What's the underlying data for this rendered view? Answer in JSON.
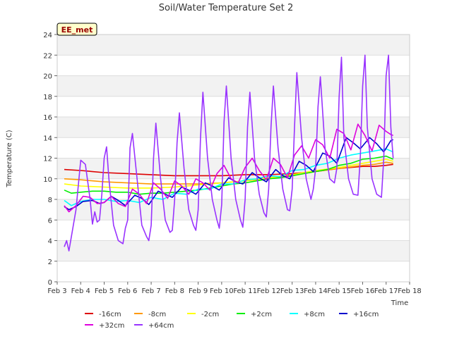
{
  "chart_data": {
    "type": "line",
    "title": "Soil/Water Temperature Set 2",
    "xlabel": "Time",
    "ylabel": "Temperature (C)",
    "annotation": "EE_met",
    "x_ticks": [
      "Feb 3",
      "Feb 4",
      "Feb 5",
      "Feb 6",
      "Feb 7",
      "Feb 8",
      "Feb 9",
      "Feb 10",
      "Feb 11",
      "Feb 12",
      "Feb 13",
      "Feb 14",
      "Feb 15",
      "Feb 16",
      "Feb 17",
      "Feb 18"
    ],
    "x_range": [
      3,
      18
    ],
    "y_range": [
      0,
      24
    ],
    "y_ticks": [
      0,
      2,
      4,
      6,
      8,
      10,
      12,
      14,
      16,
      18,
      20,
      22,
      24
    ],
    "grid": "horizontal bands",
    "legend_position": "bottom",
    "series": [
      {
        "name": "-16cm",
        "color": "#dd0000",
        "x": [
          3.3,
          4,
          5,
          6,
          7,
          8,
          9,
          10,
          11,
          12,
          13,
          14,
          15,
          16,
          16.5,
          17,
          17.3
        ],
        "y": [
          10.9,
          10.8,
          10.6,
          10.5,
          10.4,
          10.3,
          10.3,
          10.3,
          10.4,
          10.4,
          10.5,
          10.7,
          11.0,
          11.2,
          11.2,
          11.3,
          11.4
        ]
      },
      {
        "name": "-8cm",
        "color": "#ff9900",
        "x": [
          3.3,
          4,
          5,
          6,
          7,
          8,
          9,
          10,
          11,
          12,
          13,
          14,
          15,
          16,
          16.5,
          17,
          17.3
        ],
        "y": [
          10.0,
          9.9,
          9.7,
          9.6,
          9.5,
          9.5,
          9.5,
          9.6,
          9.8,
          10.0,
          10.3,
          10.7,
          11.0,
          11.3,
          11.4,
          11.6,
          11.5
        ]
      },
      {
        "name": "-2cm",
        "color": "#ffff00",
        "x": [
          3.3,
          4,
          5,
          6,
          7,
          8,
          9,
          10,
          11,
          12,
          13,
          14,
          15,
          16,
          16.5,
          17,
          17.3
        ],
        "y": [
          9.5,
          9.3,
          9.2,
          9.1,
          9.1,
          9.2,
          9.4,
          9.6,
          9.8,
          10.1,
          10.4,
          10.8,
          11.1,
          11.5,
          11.7,
          11.9,
          11.7
        ]
      },
      {
        "name": "+2cm",
        "color": "#00ee00",
        "x": [
          3.3,
          3.6,
          4,
          4.5,
          5,
          5.5,
          6,
          6.5,
          7,
          7.5,
          8,
          8.5,
          9,
          9.5,
          10,
          10.5,
          11,
          11.5,
          12,
          12.5,
          13,
          13.5,
          14,
          14.5,
          15,
          15.5,
          16,
          16.5,
          17,
          17.3
        ],
        "y": [
          8.9,
          8.6,
          8.7,
          8.8,
          8.8,
          8.7,
          8.7,
          8.5,
          8.6,
          8.6,
          8.7,
          8.8,
          8.9,
          9.1,
          9.3,
          9.5,
          9.6,
          9.8,
          10.0,
          10.1,
          10.3,
          10.5,
          10.7,
          10.9,
          11.3,
          11.5,
          11.9,
          12.0,
          12.2,
          11.9
        ]
      },
      {
        "name": "+8cm",
        "color": "#00ffff",
        "x": [
          3.3,
          3.6,
          4,
          4.5,
          5,
          5.5,
          6,
          6.5,
          7,
          7.5,
          8,
          8.5,
          9,
          9.5,
          10,
          10.5,
          11,
          11.5,
          12,
          12.5,
          13,
          13.5,
          14,
          14.5,
          15,
          15.5,
          16,
          16.5,
          17,
          17.3
        ],
        "y": [
          7.9,
          7.4,
          7.8,
          8.0,
          8.0,
          7.8,
          7.9,
          7.7,
          8.2,
          8.0,
          8.6,
          8.5,
          9.0,
          9.0,
          9.5,
          9.5,
          9.9,
          10.0,
          10.3,
          10.2,
          10.8,
          10.9,
          11.3,
          11.5,
          12.0,
          12.3,
          12.5,
          12.7,
          12.9,
          12.6
        ]
      },
      {
        "name": "+16cm",
        "color": "#0000cc",
        "x": [
          3.3,
          3.5,
          3.8,
          4.1,
          4.5,
          4.8,
          5,
          5.3,
          5.6,
          5.9,
          6.3,
          6.6,
          6.9,
          7.3,
          7.6,
          7.9,
          8.3,
          8.6,
          8.9,
          9.3,
          9.6,
          9.9,
          10.3,
          10.6,
          10.9,
          11.3,
          11.6,
          11.9,
          12.3,
          12.6,
          12.9,
          13.3,
          13.6,
          13.9,
          14.3,
          14.6,
          14.9,
          15.3,
          15.6,
          15.9,
          16.3,
          16.6,
          16.9,
          17.2,
          17.3
        ],
        "y": [
          7.3,
          7.0,
          7.3,
          7.8,
          7.9,
          7.6,
          7.7,
          8.3,
          7.9,
          7.4,
          8.4,
          8.1,
          7.5,
          8.8,
          8.5,
          8.2,
          9.2,
          8.9,
          8.5,
          9.6,
          9.3,
          8.9,
          10.1,
          9.7,
          9.5,
          10.6,
          10.1,
          9.7,
          10.9,
          10.3,
          10.0,
          11.7,
          11.3,
          10.7,
          12.5,
          12.2,
          11.5,
          14.0,
          13.5,
          12.9,
          14.0,
          13.4,
          12.6,
          13.7,
          13.8
        ]
      },
      {
        "name": "+32cm",
        "color": "#dd00dd",
        "x": [
          3.3,
          3.5,
          3.8,
          4.1,
          4.4,
          4.7,
          5,
          5.3,
          5.6,
          5.9,
          6.2,
          6.5,
          6.8,
          7.1,
          7.4,
          7.7,
          8,
          8.3,
          8.6,
          8.9,
          9.2,
          9.5,
          9.8,
          10.1,
          10.4,
          10.7,
          11,
          11.3,
          11.6,
          11.9,
          12.2,
          12.5,
          12.8,
          13.1,
          13.4,
          13.7,
          14,
          14.3,
          14.6,
          14.9,
          15.2,
          15.5,
          15.8,
          16.1,
          16.4,
          16.7,
          17,
          17.2,
          17.3
        ],
        "y": [
          7.4,
          6.8,
          7.4,
          8.3,
          8.2,
          7.6,
          7.7,
          8.3,
          7.6,
          7.3,
          9.0,
          8.5,
          7.6,
          9.6,
          9.0,
          8.1,
          9.8,
          9.3,
          8.5,
          10.0,
          9.6,
          8.9,
          10.5,
          11.3,
          10.0,
          9.6,
          11.1,
          12.0,
          10.8,
          9.9,
          12.0,
          11.4,
          10.1,
          12.3,
          13.2,
          12.0,
          13.8,
          13.3,
          12.0,
          14.8,
          14.4,
          12.8,
          15.3,
          14.2,
          12.7,
          15.2,
          14.6,
          14.3,
          14.2
        ]
      },
      {
        "name": "+64cm",
        "color": "#9933ff",
        "x": [
          3.3,
          3.4,
          3.5,
          3.8,
          4.0,
          4.2,
          4.4,
          4.5,
          4.6,
          4.7,
          4.8,
          4.9,
          5.0,
          5.1,
          5.2,
          5.4,
          5.6,
          5.8,
          5.9,
          6.0,
          6.1,
          6.2,
          6.4,
          6.6,
          6.8,
          6.9,
          7.0,
          7.1,
          7.2,
          7.4,
          7.6,
          7.8,
          7.9,
          8.0,
          8.1,
          8.2,
          8.4,
          8.6,
          8.8,
          8.9,
          9.0,
          9.1,
          9.2,
          9.4,
          9.6,
          9.8,
          9.9,
          10.0,
          10.1,
          10.2,
          10.4,
          10.6,
          10.8,
          10.9,
          11.0,
          11.1,
          11.2,
          11.4,
          11.6,
          11.8,
          11.9,
          12.0,
          12.1,
          12.2,
          12.4,
          12.6,
          12.8,
          12.9,
          13.0,
          13.1,
          13.2,
          13.4,
          13.6,
          13.8,
          13.9,
          14.0,
          14.1,
          14.2,
          14.4,
          14.6,
          14.8,
          14.9,
          15.0,
          15.1,
          15.2,
          15.4,
          15.6,
          15.8,
          15.9,
          16.0,
          16.1,
          16.2,
          16.4,
          16.6,
          16.8,
          16.9,
          17.0,
          17.1,
          17.2,
          17.3
        ],
        "y": [
          3.4,
          4.0,
          3.0,
          7.0,
          11.8,
          11.4,
          8.0,
          5.6,
          6.8,
          5.8,
          6.0,
          8.5,
          12.0,
          13.1,
          10.0,
          5.5,
          4.0,
          3.7,
          5.2,
          6.0,
          13.0,
          14.4,
          10.0,
          5.5,
          4.4,
          4.0,
          5.5,
          12.0,
          15.4,
          10.0,
          6.0,
          4.8,
          5.0,
          8.0,
          13.5,
          16.4,
          11.0,
          7.0,
          5.5,
          5.0,
          7.0,
          14.0,
          18.4,
          12.0,
          8.0,
          6.0,
          5.2,
          7.5,
          15.5,
          19.0,
          12.0,
          8.0,
          6.0,
          5.3,
          8.0,
          15.0,
          18.4,
          12.0,
          8.5,
          6.7,
          6.3,
          9.0,
          15.0,
          19.0,
          13.0,
          9.0,
          7.0,
          6.9,
          9.0,
          15.0,
          20.3,
          14.0,
          10.0,
          8.0,
          9.0,
          11.0,
          17.0,
          19.9,
          13.0,
          10.0,
          9.6,
          11.0,
          18.0,
          21.8,
          14.0,
          10.0,
          8.5,
          8.4,
          12.0,
          19.0,
          22.0,
          15.0,
          10.0,
          8.5,
          8.2,
          12.0,
          20.0,
          22.0,
          15.0,
          12.0
        ]
      }
    ]
  }
}
